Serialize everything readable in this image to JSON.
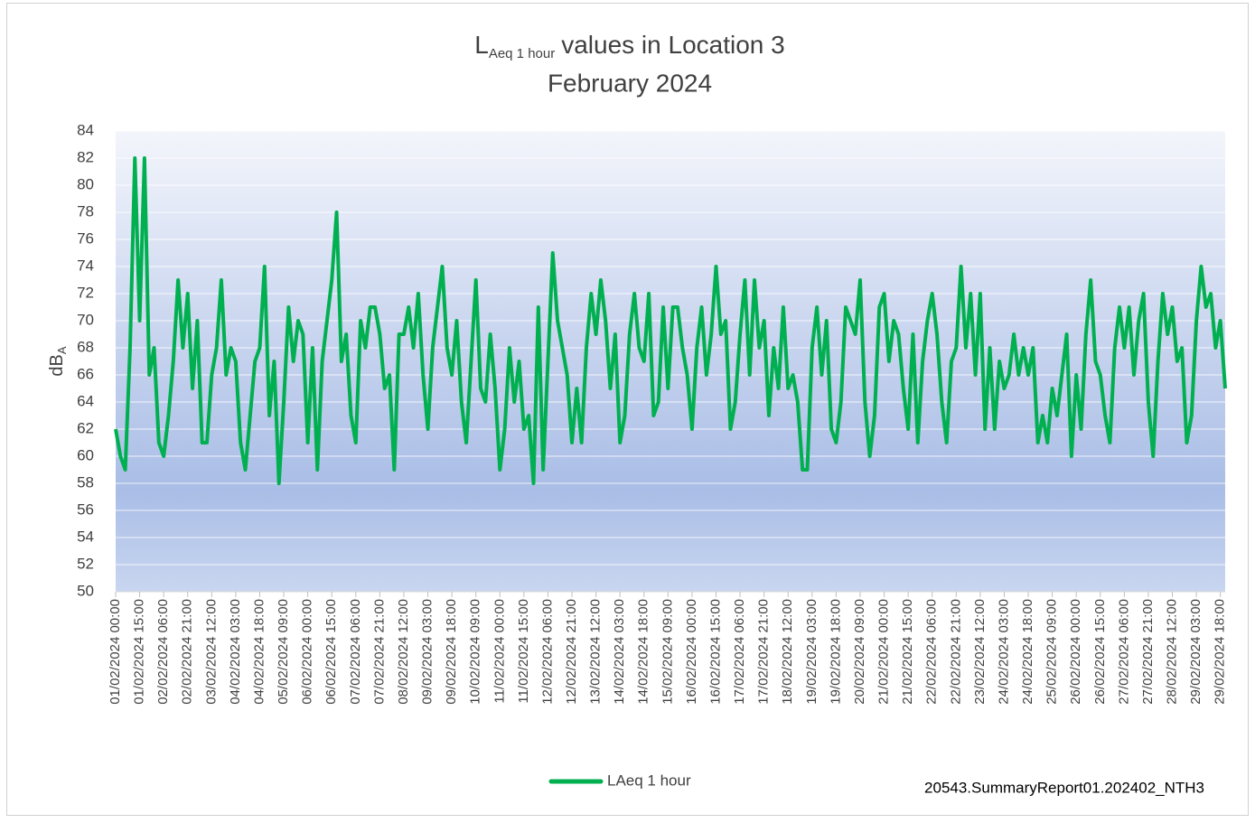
{
  "chart_data": {
    "type": "line",
    "title": "L",
    "title_sub": "Aeq 1 hour",
    "title_rest": "values in Location 3",
    "subtitle": "February 2024",
    "ylabel": "dB",
    "ylabel_sub": "A",
    "annotation": "20543.SummaryReport01.202402_NTH3",
    "ylim": [
      50,
      84
    ],
    "yticks": [
      50,
      52,
      54,
      56,
      58,
      60,
      62,
      64,
      66,
      68,
      70,
      72,
      74,
      76,
      78,
      80,
      82,
      84
    ],
    "grid": true,
    "legend": "bottom",
    "categories": [
      "01/02/2024 00:00",
      null,
      null,
      null,
      null,
      "01/02/2024 15:00",
      null,
      null,
      null,
      null,
      "02/02/2024 06:00",
      null,
      null,
      null,
      null,
      "02/02/2024 21:00",
      null,
      null,
      null,
      null,
      "03/02/2024 12:00",
      null,
      null,
      null,
      null,
      "04/02/2024 03:00",
      null,
      null,
      null,
      null,
      "04/02/2024 18:00",
      null,
      null,
      null,
      null,
      "05/02/2024 09:00",
      null,
      null,
      null,
      null,
      "06/02/2024 00:00",
      null,
      null,
      null,
      null,
      "06/02/2024 15:00",
      null,
      null,
      null,
      null,
      "07/02/2024 06:00",
      null,
      null,
      null,
      null,
      "07/02/2024 21:00",
      null,
      null,
      null,
      null,
      "08/02/2024 12:00",
      null,
      null,
      null,
      null,
      "09/02/2024 03:00",
      null,
      null,
      null,
      null,
      "09/02/2024 18:00",
      null,
      null,
      null,
      null,
      "10/02/2024 09:00",
      null,
      null,
      null,
      null,
      "11/02/2024 00:00",
      null,
      null,
      null,
      null,
      "11/02/2024 15:00",
      null,
      null,
      null,
      null,
      "12/02/2024 06:00",
      null,
      null,
      null,
      null,
      "12/02/2024 21:00",
      null,
      null,
      null,
      null,
      "13/02/2024 12:00",
      null,
      null,
      null,
      null,
      "14/02/2024 03:00",
      null,
      null,
      null,
      null,
      "14/02/2024 18:00",
      null,
      null,
      null,
      null,
      "15/02/2024 09:00",
      null,
      null,
      null,
      null,
      "16/02/2024 00:00",
      null,
      null,
      null,
      null,
      "16/02/2024 15:00",
      null,
      null,
      null,
      null,
      "17/02/2024 06:00",
      null,
      null,
      null,
      null,
      "17/02/2024 21:00",
      null,
      null,
      null,
      null,
      "18/02/2024 12:00",
      null,
      null,
      null,
      null,
      "19/02/2024 03:00",
      null,
      null,
      null,
      null,
      "19/02/2024 18:00",
      null,
      null,
      null,
      null,
      "20/02/2024 09:00",
      null,
      null,
      null,
      null,
      "21/02/2024 00:00",
      null,
      null,
      null,
      null,
      "21/02/2024 15:00",
      null,
      null,
      null,
      null,
      "22/02/2024 06:00",
      null,
      null,
      null,
      null,
      "22/02/2024 21:00",
      null,
      null,
      null,
      null,
      "23/02/2024 12:00",
      null,
      null,
      null,
      null,
      "24/02/2024 03:00",
      null,
      null,
      null,
      null,
      "24/02/2024 18:00",
      null,
      null,
      null,
      null,
      "25/02/2024 09:00",
      null,
      null,
      null,
      null,
      "26/02/2024 00:00",
      null,
      null,
      null,
      null,
      "26/02/2024 15:00",
      null,
      null,
      null,
      null,
      "27/02/2024 06:00",
      null,
      null,
      null,
      null,
      "27/02/2024 21:00",
      null,
      null,
      null,
      null,
      "28/02/2024 12:00",
      null,
      null,
      null,
      null,
      "29/02/2024 03:00",
      null,
      null,
      null,
      null,
      "29/02/2024 18:00",
      null
    ],
    "series": [
      {
        "name": "LAeq 1 hour",
        "color": "#00b050",
        "values": [
          62,
          60,
          59,
          68,
          82,
          70,
          82,
          66,
          68,
          61,
          60,
          63,
          67,
          73,
          68,
          72,
          65,
          70,
          61,
          61,
          66,
          68,
          73,
          66,
          68,
          67,
          61,
          59,
          63,
          67,
          68,
          74,
          63,
          67,
          58,
          64,
          71,
          67,
          70,
          69,
          61,
          68,
          59,
          67,
          70,
          73,
          78,
          67,
          69,
          63,
          61,
          70,
          68,
          71,
          71,
          69,
          65,
          66,
          59,
          69,
          69,
          71,
          68,
          72,
          66,
          62,
          68,
          71,
          74,
          68,
          66,
          70,
          64,
          61,
          67,
          73,
          65,
          64,
          69,
          65,
          59,
          62,
          68,
          64,
          67,
          62,
          63,
          58,
          71,
          59,
          67,
          75,
          70,
          68,
          66,
          61,
          65,
          61,
          68,
          72,
          69,
          73,
          70,
          65,
          69,
          61,
          63,
          69,
          72,
          68,
          67,
          72,
          63,
          64,
          71,
          65,
          71,
          71,
          68,
          66,
          62,
          68,
          71,
          66,
          69,
          74,
          69,
          70,
          62,
          64,
          69,
          73,
          66,
          73,
          68,
          70,
          63,
          68,
          65,
          71,
          65,
          66,
          64,
          59,
          59,
          68,
          71,
          66,
          70,
          62,
          61,
          64,
          71,
          70,
          69,
          73,
          64,
          60,
          63,
          71,
          72,
          67,
          70,
          69,
          65,
          62,
          69,
          61,
          67,
          70,
          72,
          69,
          64,
          61,
          67,
          68,
          74,
          68,
          72,
          66,
          72,
          62,
          68,
          62,
          67,
          65,
          66,
          69,
          66,
          68,
          66,
          68,
          61,
          63,
          61,
          65,
          63,
          66,
          69,
          60,
          66,
          62,
          69,
          73,
          67,
          66,
          63,
          61,
          68,
          71,
          68,
          71,
          66,
          70,
          72,
          64,
          60,
          67,
          72,
          69,
          71,
          67,
          68,
          61,
          63,
          70,
          74,
          71,
          72,
          68,
          70,
          65
        ]
      }
    ]
  }
}
